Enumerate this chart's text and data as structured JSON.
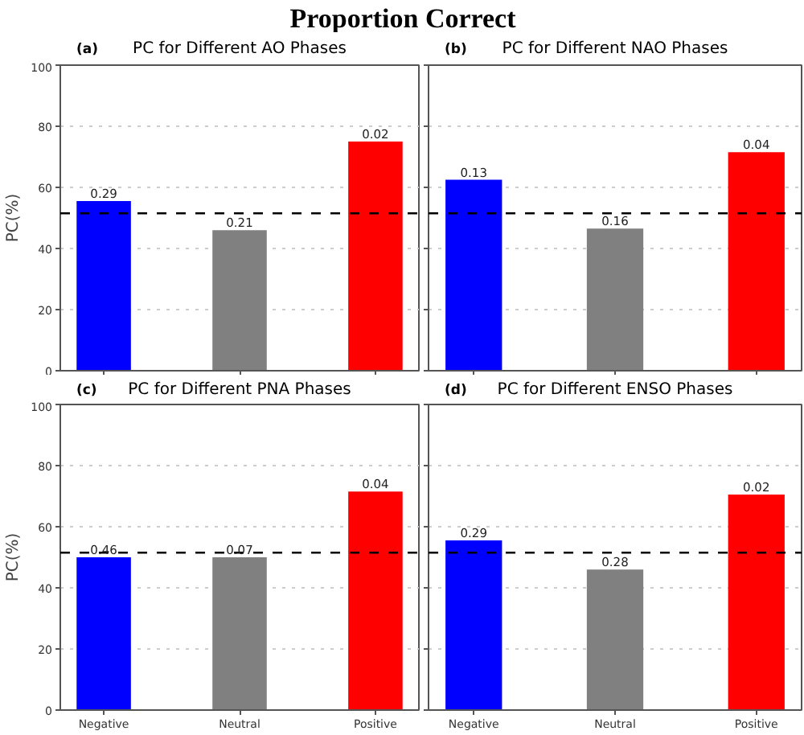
{
  "chart_data": [
    {
      "type": "other",
      "title": "Proportion Correct"
    },
    {
      "type": "bar",
      "title": "PC for Different AO Phases",
      "annotations": [
        "(a)",
        {
          "text": "0.29",
          "x": "Negative",
          "y": 55.5
        },
        {
          "text": "0.21",
          "x": "Neutral",
          "y": 46
        },
        {
          "text": "0.02",
          "x": "Positive",
          "y": 75
        }
      ],
      "ylabel": "PC(%)",
      "categories": [
        "Negative",
        "Neutral",
        "Positive"
      ],
      "values": [
        55.5,
        46,
        75
      ],
      "colors": [
        "#0000ff",
        "#808080",
        "#ff0000"
      ],
      "ylim": [
        0,
        100
      ],
      "yticks": [
        0,
        20,
        40,
        60,
        80,
        100
      ],
      "grid": "y",
      "ref_lines": [
        {
          "axis": "y",
          "value": 51.5,
          "color": "#000000",
          "line_style": "dashed"
        }
      ],
      "tick_labels": "y"
    },
    {
      "type": "bar",
      "title": "PC for Different NAO Phases",
      "annotations": [
        "(b)",
        {
          "text": "0.13",
          "x": "Negative",
          "y": 62.5
        },
        {
          "text": "0.16",
          "x": "Neutral",
          "y": 46.5
        },
        {
          "text": "0.04",
          "x": "Positive",
          "y": 71.5
        }
      ],
      "categories": [
        "Negative",
        "Neutral",
        "Positive"
      ],
      "values": [
        62.5,
        46.5,
        71.5
      ],
      "colors": [
        "#0000ff",
        "#808080",
        "#ff0000"
      ],
      "ylim": [
        0,
        100
      ],
      "yticks": [
        0,
        20,
        40,
        60,
        80,
        100
      ],
      "grid": "y",
      "ref_lines": [
        {
          "axis": "y",
          "value": 51.5,
          "color": "#000000",
          "line_style": "dashed"
        }
      ],
      "tick_labels": false
    },
    {
      "type": "bar",
      "title": "PC for Different PNA Phases",
      "annotations": [
        "(c)",
        {
          "text": "0.46",
          "x": "Negative",
          "y": 50
        },
        {
          "text": "0.07",
          "x": "Neutral",
          "y": 50
        },
        {
          "text": "0.04",
          "x": "Positive",
          "y": 71.5
        }
      ],
      "ylabel": "PC(%)",
      "categories": [
        "Negative",
        "Neutral",
        "Positive"
      ],
      "values": [
        50,
        50,
        71.5
      ],
      "colors": [
        "#0000ff",
        "#808080",
        "#ff0000"
      ],
      "ylim": [
        0,
        100
      ],
      "yticks": [
        0,
        20,
        40,
        60,
        80,
        100
      ],
      "grid": "y",
      "ref_lines": [
        {
          "axis": "y",
          "value": 51.5,
          "color": "#000000",
          "line_style": "dashed"
        }
      ]
    },
    {
      "type": "bar",
      "title": "PC for Different ENSO Phases",
      "annotations": [
        "(d)",
        {
          "text": "0.29",
          "x": "Negative",
          "y": 55.5
        },
        {
          "text": "0.28",
          "x": "Neutral",
          "y": 46
        },
        {
          "text": "0.02",
          "x": "Positive",
          "y": 70.5
        }
      ],
      "categories": [
        "Negative",
        "Neutral",
        "Positive"
      ],
      "values": [
        55.5,
        46,
        70.5
      ],
      "colors": [
        "#0000ff",
        "#808080",
        "#ff0000"
      ],
      "ylim": [
        0,
        100
      ],
      "yticks": [
        0,
        20,
        40,
        60,
        80,
        100
      ],
      "grid": "y",
      "ref_lines": [
        {
          "axis": "y",
          "value": 51.5,
          "color": "#000000",
          "line_style": "dashed"
        }
      ],
      "tick_labels": "x"
    }
  ]
}
